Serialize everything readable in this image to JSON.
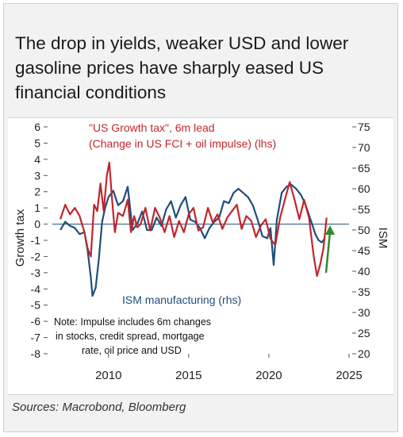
{
  "title": "The drop in yields, weaker USD and lower gasoline prices have sharply eased US financial conditions",
  "source": "Sources: Macrobond, Bloomberg",
  "colors": {
    "growth_tax": "#c0262d",
    "ism": "#1f4e79",
    "arrow": "#2e8b2e",
    "zero_line": "#1f4e79"
  },
  "chart_data": {
    "type": "line",
    "xlim": [
      2006.5,
      2025
    ],
    "x_ticks": [
      "2010",
      "2015",
      "2020",
      "2025"
    ],
    "y_left": {
      "label": "Growth tax",
      "ylim": [
        -8,
        6
      ],
      "ticks": [
        "6",
        "5",
        "4",
        "3",
        "2",
        "1",
        "0",
        "-1",
        "-2",
        "-3",
        "-4",
        "-5",
        "-6",
        "-7",
        "-8"
      ]
    },
    "y_right": {
      "label": "ISM",
      "ylim": [
        20,
        75
      ],
      "ticks": [
        "75",
        "70",
        "65",
        "60",
        "55",
        "50",
        "45",
        "40",
        "35",
        "30",
        "25",
        "20"
      ]
    },
    "grid": false,
    "series": [
      {
        "name": "\"US Growth tax\", 6m lead (Change in US FCI + oil impulse) (lhs)",
        "axis": "left",
        "x": [
          2007.0,
          2007.3,
          2007.6,
          2007.9,
          2008.2,
          2008.5,
          2008.7,
          2008.9,
          2009.1,
          2009.3,
          2009.5,
          2009.7,
          2009.9,
          2010.05,
          2010.2,
          2010.4,
          2010.6,
          2010.9,
          2011.2,
          2011.4,
          2011.6,
          2011.8,
          2012.0,
          2012.3,
          2012.6,
          2012.9,
          2013.2,
          2013.5,
          2013.8,
          2014.1,
          2014.4,
          2014.7,
          2015.0,
          2015.3,
          2015.6,
          2015.9,
          2016.2,
          2016.5,
          2016.8,
          2017.1,
          2017.4,
          2017.7,
          2018.0,
          2018.3,
          2018.6,
          2018.9,
          2019.2,
          2019.5,
          2019.8,
          2020.1,
          2020.4,
          2020.7,
          2021.0,
          2021.3,
          2021.6,
          2021.9,
          2022.2,
          2022.5,
          2022.8,
          2023.0,
          2023.2,
          2023.4,
          2023.6
        ],
        "values": [
          0.3,
          1.2,
          0.6,
          1.0,
          0.5,
          -0.5,
          -1.5,
          -2.0,
          1.2,
          0.8,
          2.5,
          0.8,
          3.0,
          3.8,
          1.8,
          -0.5,
          0.7,
          0.5,
          1.5,
          -0.5,
          0.5,
          -0.2,
          0.0,
          1.0,
          -0.4,
          1.0,
          0.4,
          -0.5,
          0.5,
          -0.8,
          0.2,
          -0.5,
          0.6,
          1.0,
          -0.4,
          -0.2,
          1.0,
          0.1,
          0.6,
          -0.3,
          0.4,
          0.8,
          1.2,
          -0.3,
          0.5,
          0.2,
          -0.8,
          -0.1,
          0.3,
          -0.9,
          -1.3,
          0.4,
          1.5,
          2.6,
          1.5,
          0.3,
          1.5,
          0.4,
          -2.0,
          -3.2,
          -2.5,
          -1.5,
          0.4
        ]
      },
      {
        "name": "ISM manufacturing (rhs)",
        "axis": "right",
        "x": [
          2007.0,
          2007.3,
          2007.6,
          2007.9,
          2008.2,
          2008.5,
          2008.7,
          2008.9,
          2009.0,
          2009.2,
          2009.4,
          2009.6,
          2009.8,
          2010.0,
          2010.3,
          2010.6,
          2010.9,
          2011.2,
          2011.5,
          2011.8,
          2012.1,
          2012.4,
          2012.7,
          2013.0,
          2013.3,
          2013.6,
          2013.9,
          2014.2,
          2014.5,
          2014.8,
          2015.1,
          2015.4,
          2015.7,
          2016.0,
          2016.3,
          2016.6,
          2016.9,
          2017.2,
          2017.5,
          2017.8,
          2018.1,
          2018.4,
          2018.7,
          2019.0,
          2019.3,
          2019.6,
          2019.9,
          2020.1,
          2020.3,
          2020.5,
          2020.8,
          2021.1,
          2021.4,
          2021.7,
          2022.0,
          2022.3,
          2022.6,
          2022.9,
          2023.1,
          2023.3,
          2023.5
        ],
        "values": [
          50.0,
          52.0,
          51.0,
          50.5,
          49.0,
          49.5,
          45.0,
          38.5,
          34.0,
          36.0,
          43.0,
          52.0,
          55.5,
          58.0,
          59.5,
          56.0,
          57.0,
          60.5,
          50.0,
          51.5,
          54.5,
          50.0,
          50.0,
          53.0,
          51.0,
          55.0,
          57.0,
          53.0,
          56.0,
          58.0,
          52.5,
          52.0,
          50.5,
          48.0,
          50.5,
          52.0,
          53.0,
          57.0,
          56.5,
          59.0,
          60.0,
          59.0,
          58.0,
          56.0,
          52.5,
          48.5,
          48.0,
          50.5,
          41.5,
          52.5,
          59.0,
          60.5,
          61.0,
          60.0,
          58.5,
          56.0,
          52.5,
          49.0,
          47.5,
          47.0,
          48.0
        ]
      }
    ],
    "annotations": [
      "Note: Impulse includes 6m changes",
      "in stocks, credit spread, mortgage",
      "rate, oil price and USD"
    ],
    "legend_lines": [
      "\"US Growth tax\", 6m lead",
      "(Change in US FCI + oil impulse) (lhs)"
    ],
    "ism_label": "ISM manufacturing (rhs)"
  }
}
